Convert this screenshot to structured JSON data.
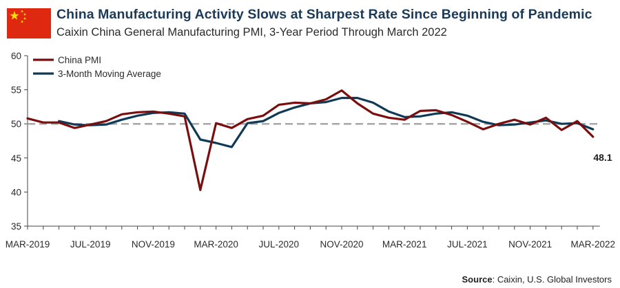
{
  "header": {
    "title": "China Manufacturing Activity Slows at Sharpest Rate Since Beginning of Pandemic",
    "subtitle": "Caixin China General Manufacturing PMI, 3-Year Period Through March 2022"
  },
  "colors": {
    "flag_red": "#de2910",
    "flag_star": "#ffde00",
    "china_pmi": "#7a0e0e",
    "moving_average": "#0f3a55",
    "reference_line": "#a6a6a6",
    "title": "#1b3a57"
  },
  "footer": {
    "source_label": "Source",
    "source_text": ": Caixin, U.S. Global Investors"
  },
  "chart_data": {
    "type": "line",
    "x": [
      "2019-03",
      "2019-04",
      "2019-05",
      "2019-06",
      "2019-07",
      "2019-08",
      "2019-09",
      "2019-10",
      "2019-11",
      "2019-12",
      "2020-01",
      "2020-02",
      "2020-03",
      "2020-04",
      "2020-05",
      "2020-06",
      "2020-07",
      "2020-08",
      "2020-09",
      "2020-10",
      "2020-11",
      "2020-12",
      "2021-01",
      "2021-02",
      "2021-03",
      "2021-04",
      "2021-05",
      "2021-06",
      "2021-07",
      "2021-08",
      "2021-09",
      "2021-10",
      "2021-11",
      "2021-12",
      "2022-01",
      "2022-02",
      "2022-03"
    ],
    "tick_labels": [
      "MAR-2019",
      "JUL-2019",
      "NOV-2019",
      "MAR-2020",
      "JUL-2020",
      "NOV-2020",
      "MAR-2021",
      "JUL-2021",
      "NOV-2021",
      "MAR-2022"
    ],
    "tick_indices": [
      0,
      4,
      8,
      12,
      16,
      20,
      24,
      28,
      32,
      36
    ],
    "series": [
      {
        "name": "China PMI",
        "values": [
          50.8,
          50.2,
          50.2,
          49.4,
          49.9,
          50.4,
          51.4,
          51.7,
          51.8,
          51.5,
          51.1,
          40.3,
          50.1,
          49.4,
          50.7,
          51.2,
          52.8,
          53.1,
          53.0,
          53.6,
          54.9,
          53.0,
          51.5,
          50.9,
          50.6,
          51.9,
          52.0,
          51.3,
          50.3,
          49.2,
          50.0,
          50.6,
          49.9,
          50.9,
          49.1,
          50.4,
          48.1
        ]
      },
      {
        "name": "3-Month Moving Average",
        "values": [
          null,
          null,
          50.4,
          49.9,
          49.8,
          49.9,
          50.6,
          51.2,
          51.6,
          51.7,
          51.5,
          47.7,
          47.2,
          46.6,
          50.1,
          50.4,
          51.6,
          52.4,
          53.0,
          53.2,
          53.8,
          53.8,
          53.1,
          51.8,
          51.0,
          51.1,
          51.5,
          51.7,
          51.2,
          50.3,
          49.8,
          49.9,
          50.2,
          50.5,
          50.0,
          50.1,
          49.2
        ]
      }
    ],
    "reference_line": {
      "y": 50,
      "style": "dashed"
    },
    "end_label": "48.1",
    "y_ticks": [
      35,
      40,
      45,
      50,
      55,
      60
    ],
    "ylim": [
      35,
      60
    ],
    "grid": false,
    "legend_placement": "top-left"
  }
}
